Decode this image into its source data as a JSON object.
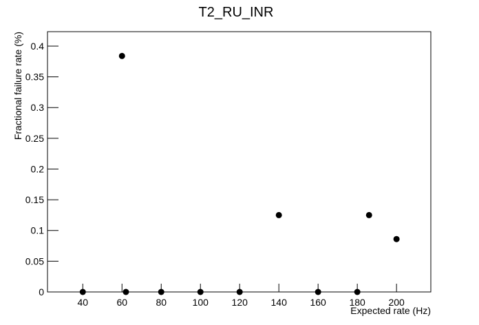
{
  "chart_data": {
    "type": "scatter",
    "title": "T2_RU_INR",
    "x_label": "Expected rate (Hz)",
    "y_label": "Fractional failure rate (%)",
    "color": "#000000",
    "x": [
      40,
      60,
      62,
      80,
      100,
      120,
      140,
      160,
      180,
      186,
      200
    ],
    "values": [
      0,
      0.384,
      0,
      0,
      0,
      0,
      0.125,
      0,
      0,
      0.125,
      0.086
    ],
    "xlim": [
      22,
      217.5
    ],
    "ylim": [
      0,
      0.4235
    ],
    "xticks": [
      40,
      60,
      80,
      100,
      120,
      140,
      160,
      180,
      200
    ],
    "yticks": [
      0,
      0.05,
      0.1,
      0.15,
      0.2,
      0.25,
      0.3,
      0.35,
      0.4
    ]
  }
}
